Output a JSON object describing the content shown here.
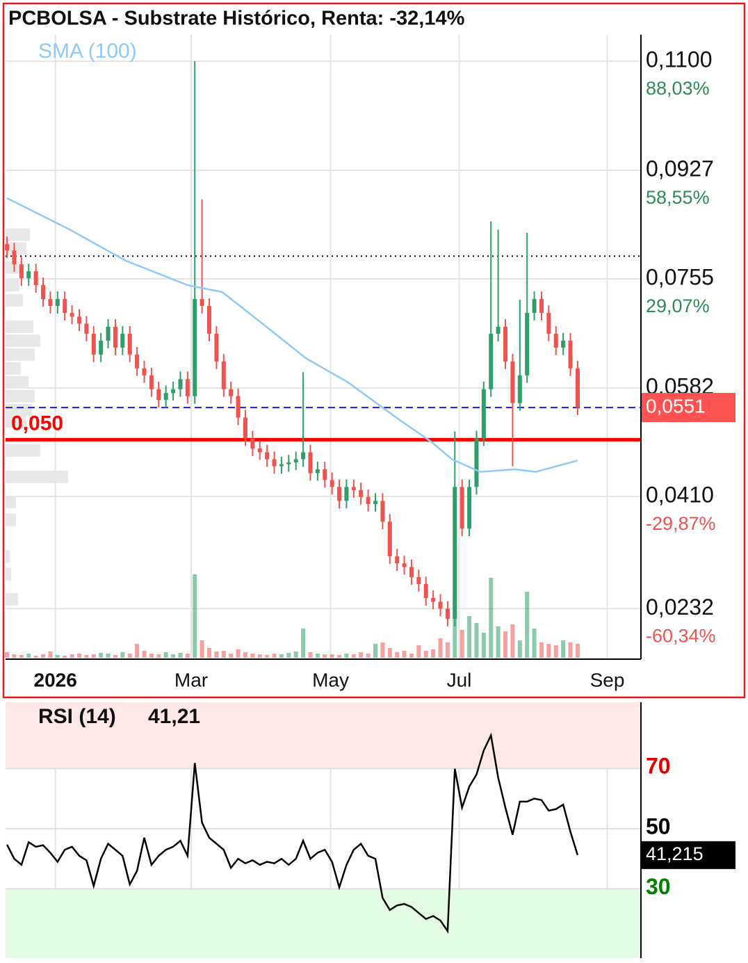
{
  "chart_data": [
    {
      "type": "candlestick",
      "title": "PCBOLSA - Substrate Histórico, Renta: -32,14%",
      "up_color": "#2e9e6b",
      "down_color": "#ef5350",
      "open": [
        0.081,
        0.08,
        0.0778,
        0.0756,
        0.0767,
        0.0745,
        0.0723,
        0.0712,
        0.0723,
        0.0701,
        0.0695,
        0.0684,
        0.0668,
        0.0635,
        0.0657,
        0.0679,
        0.0646,
        0.0668,
        0.0635,
        0.0613,
        0.0602,
        0.058,
        0.0563,
        0.0574,
        0.058,
        0.0596,
        0.0569,
        0.0723,
        0.0712,
        0.0668,
        0.0624,
        0.058,
        0.0569,
        0.0535,
        0.0502,
        0.0486,
        0.048,
        0.0469,
        0.0458,
        0.0461,
        0.0464,
        0.0469,
        0.048,
        0.0447,
        0.0453,
        0.0436,
        0.0425,
        0.0403,
        0.0425,
        0.042,
        0.0409,
        0.0398,
        0.0403,
        0.037,
        0.0315,
        0.0304,
        0.0298,
        0.0282,
        0.0271,
        0.0249,
        0.0243,
        0.0232,
        0.0216,
        0.0425,
        0.0359,
        0.0425,
        0.0502,
        0.058,
        0.0668,
        0.0679,
        0.0624,
        0.0558,
        0.0602,
        0.0701,
        0.0723,
        0.0701,
        0.0668,
        0.0646,
        0.0657,
        0.0613
      ],
      "high": [
        0.0822,
        0.0812,
        0.079,
        0.0779,
        0.0779,
        0.0757,
        0.0735,
        0.0735,
        0.0735,
        0.0713,
        0.0707,
        0.0696,
        0.068,
        0.0669,
        0.0691,
        0.0691,
        0.068,
        0.068,
        0.0647,
        0.0625,
        0.0614,
        0.0592,
        0.0586,
        0.0592,
        0.0608,
        0.0608,
        0.11,
        0.0881,
        0.0724,
        0.068,
        0.0636,
        0.0592,
        0.0581,
        0.0547,
        0.0514,
        0.0498,
        0.0492,
        0.0481,
        0.0473,
        0.0476,
        0.0481,
        0.0607,
        0.0492,
        0.0465,
        0.0465,
        0.0448,
        0.0437,
        0.0437,
        0.0437,
        0.0432,
        0.0421,
        0.0415,
        0.0415,
        0.0382,
        0.0327,
        0.0316,
        0.031,
        0.0294,
        0.0283,
        0.0261,
        0.0255,
        0.0244,
        0.0513,
        0.0437,
        0.0437,
        0.0514,
        0.0592,
        0.0846,
        0.0833,
        0.0691,
        0.0636,
        0.0722,
        0.0828,
        0.0735,
        0.0735,
        0.0713,
        0.068,
        0.0669,
        0.0669,
        0.0625
      ],
      "low": [
        0.0788,
        0.0766,
        0.0744,
        0.0744,
        0.0733,
        0.0711,
        0.07,
        0.07,
        0.0689,
        0.0683,
        0.0672,
        0.0656,
        0.0623,
        0.0623,
        0.0645,
        0.0634,
        0.0634,
        0.0623,
        0.0601,
        0.059,
        0.0568,
        0.0551,
        0.0551,
        0.0562,
        0.0568,
        0.0557,
        0.0557,
        0.07,
        0.0656,
        0.0612,
        0.0568,
        0.0557,
        0.0523,
        0.049,
        0.0474,
        0.0468,
        0.0457,
        0.0446,
        0.0446,
        0.0449,
        0.0452,
        0.0457,
        0.0435,
        0.0435,
        0.0424,
        0.0413,
        0.0391,
        0.0391,
        0.0408,
        0.0397,
        0.0386,
        0.0386,
        0.0358,
        0.0303,
        0.0292,
        0.0286,
        0.027,
        0.0259,
        0.0237,
        0.0231,
        0.022,
        0.0204,
        0.0204,
        0.0347,
        0.0347,
        0.0413,
        0.049,
        0.0568,
        0.0656,
        0.0612,
        0.0458,
        0.0546,
        0.059,
        0.0689,
        0.0689,
        0.0656,
        0.0634,
        0.0634,
        0.0601,
        0.0539
      ],
      "close": [
        0.08,
        0.0778,
        0.0756,
        0.0767,
        0.0745,
        0.0723,
        0.0712,
        0.0723,
        0.0701,
        0.0695,
        0.0684,
        0.0668,
        0.0635,
        0.0657,
        0.0679,
        0.0646,
        0.0668,
        0.0635,
        0.0613,
        0.0602,
        0.058,
        0.0563,
        0.0574,
        0.058,
        0.0596,
        0.0569,
        0.0723,
        0.0712,
        0.0668,
        0.0624,
        0.058,
        0.0569,
        0.0535,
        0.0502,
        0.0486,
        0.048,
        0.0469,
        0.0458,
        0.0461,
        0.0464,
        0.0469,
        0.048,
        0.0447,
        0.0453,
        0.0436,
        0.0425,
        0.0403,
        0.0425,
        0.042,
        0.0409,
        0.0398,
        0.0403,
        0.037,
        0.0315,
        0.0304,
        0.0298,
        0.0282,
        0.0271,
        0.0249,
        0.0243,
        0.0232,
        0.0216,
        0.0425,
        0.0359,
        0.0425,
        0.0502,
        0.058,
        0.0668,
        0.0679,
        0.0624,
        0.0558,
        0.0602,
        0.0701,
        0.0723,
        0.0701,
        0.0668,
        0.0646,
        0.0657,
        0.0613,
        0.0551
      ],
      "volume": [
        8,
        5,
        4,
        6,
        3,
        5,
        9,
        4,
        3,
        5,
        6,
        4,
        5,
        7,
        6,
        4,
        8,
        6,
        20,
        10,
        6,
        5,
        8,
        5,
        7,
        6,
        120,
        25,
        14,
        9,
        10,
        6,
        12,
        8,
        6,
        5,
        4,
        6,
        5,
        7,
        9,
        42,
        8,
        6,
        5,
        5,
        4,
        6,
        5,
        8,
        6,
        20,
        22,
        14,
        8,
        10,
        6,
        18,
        10,
        12,
        28,
        22,
        88,
        40,
        60,
        50,
        36,
        115,
        45,
        38,
        48,
        25,
        95,
        42,
        22,
        20,
        18,
        25,
        22,
        20
      ],
      "volume_profile": {
        "levels": [
          0.0825,
          0.0803,
          0.0773,
          0.0745,
          0.0721,
          0.0679,
          0.0657,
          0.0635,
          0.0613,
          0.0591,
          0.0569,
          0.0547,
          0.0529,
          0.0483,
          0.0441,
          0.0401,
          0.0373,
          0.0315,
          0.0287,
          0.0247
        ],
        "values": [
          35,
          30,
          25,
          20,
          25,
          40,
          50,
          42,
          22,
          33,
          42,
          38,
          30,
          50,
          90,
          15,
          15,
          6,
          8,
          18
        ],
        "color": "#e8e8e8"
      },
      "overlays": [
        {
          "name": "SMA (100)",
          "color": "#90caf9",
          "x": [
            0,
            8.7,
            16.4,
            25,
            29.8,
            34.7,
            41.4,
            47.2,
            53.9,
            58.7,
            61.6,
            65.5,
            70.3,
            73.2,
            79
          ],
          "values": [
            0.0883,
            0.0833,
            0.0784,
            0.0745,
            0.0734,
            0.069,
            0.0629,
            0.0591,
            0.0535,
            0.0497,
            0.0469,
            0.0449,
            0.0453,
            0.0449,
            0.0467
          ]
        }
      ],
      "last_price": {
        "value": 0.0551,
        "label": "0,0551",
        "color": "#ff5252",
        "line_color": "#1a1aff"
      },
      "support": {
        "value": 0.05,
        "label": "0,050",
        "color": "#ff0000"
      },
      "reference_line": {
        "value": 0.0791
      },
      "xlim": [
        -0.2,
        87.67
      ],
      "xticks": [
        {
          "value": 6.7,
          "label": "2026",
          "bold": true
        },
        {
          "value": 25.5,
          "label": "Mar"
        },
        {
          "value": 44.8,
          "label": "May"
        },
        {
          "value": 62.6,
          "label": "Jul"
        },
        {
          "value": 83.1,
          "label": "Sep"
        }
      ],
      "ylim": [
        0.0152,
        0.1142
      ],
      "yticks": [
        {
          "value": 0.11,
          "label": "0,1100",
          "change_label": "88,03%",
          "change_color": "#2e8b57"
        },
        {
          "value": 0.0927,
          "label": "0,0927",
          "change_label": "58,55%",
          "change_color": "#2e8b57"
        },
        {
          "value": 0.0755,
          "label": "0,0755",
          "change_label": "29,07%",
          "change_color": "#2e8b57"
        },
        {
          "value": 0.0582,
          "label": "0,0582"
        },
        {
          "value": 0.041,
          "label": "0,0410",
          "change_label": "-29,87%",
          "change_color": "#ef5350"
        },
        {
          "value": 0.0232,
          "label": "0,0232",
          "change_label": "-60,34%",
          "change_color": "#ef5350"
        }
      ],
      "grid": true
    },
    {
      "type": "line",
      "title": "RSI (14)",
      "title_value": {
        "value": 41.21,
        "label": "41,21"
      },
      "last_value": {
        "value": 41.215,
        "label": "41,215"
      },
      "color": "#000000",
      "values": [
        44.7,
        40,
        38,
        45.5,
        44,
        44.5,
        42,
        39,
        43,
        44,
        41,
        39.5,
        31,
        40,
        45,
        43,
        41,
        31.5,
        36,
        47,
        38,
        41,
        43,
        44,
        46,
        41,
        71.8,
        52,
        47,
        45,
        43,
        37,
        40,
        38.5,
        39.5,
        38,
        39,
        38.5,
        40,
        38,
        40,
        46,
        40,
        42,
        43,
        39,
        30.5,
        38,
        43,
        45,
        41,
        40,
        27,
        23,
        24.5,
        25,
        24,
        22,
        20,
        21,
        19.5,
        16,
        69.9,
        57,
        64,
        68,
        76,
        81,
        67,
        57,
        48,
        59,
        59,
        60,
        59.5,
        56,
        56.5,
        58,
        49,
        41.21
      ],
      "xlim": [
        -0.2,
        87.67
      ],
      "ylim": [
        7,
        92
      ],
      "yticks": [
        30,
        50,
        70
      ],
      "ytick_colors": [
        "#008000",
        "#000000",
        "#e00000"
      ],
      "zones": [
        {
          "above": 70,
          "color": "#fde8e8"
        },
        {
          "below": 30,
          "color": "#e2fbe2"
        }
      ],
      "grid": true
    }
  ]
}
